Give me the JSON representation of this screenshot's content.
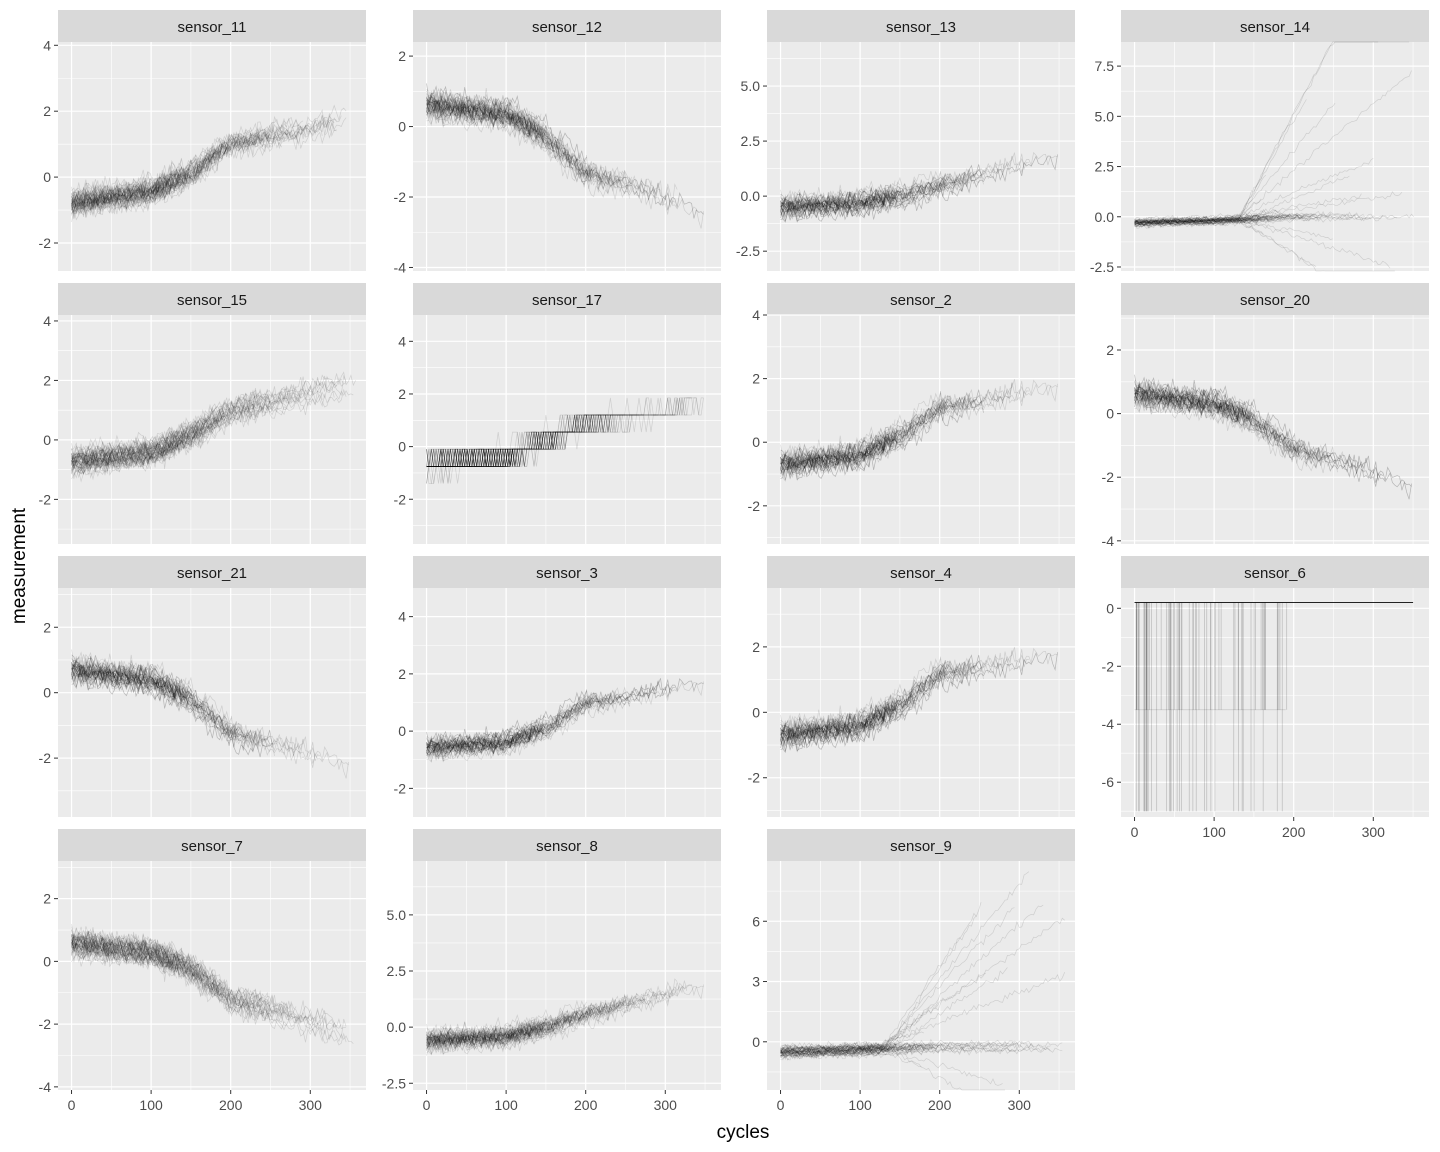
{
  "chart_data": {
    "type": "line",
    "chart_kind": "faceted multi-series line plot (many overlapping translucent traces per panel)",
    "xlabel": "cycles",
    "ylabel": "measurement",
    "grid": true,
    "legend": "none",
    "colors": {
      "panel_background": "#ebebeb",
      "strip_background": "#d9d9d9",
      "grid": "#ffffff",
      "trace": "#000000",
      "tick_label": "#4d4d4d"
    },
    "xlim": [
      -17,
      370
    ],
    "x_ticks": [
      0,
      100,
      200,
      300
    ],
    "panels": [
      {
        "name": "sensor_11",
        "pattern": "increasing",
        "ylim": [
          -2.85,
          4.1
        ],
        "y_ticks": [
          -2,
          0,
          2,
          4
        ],
        "y_tick_labels": [
          "-2",
          "0",
          "2",
          "4"
        ],
        "trend": {
          "x": [
            0,
            100,
            150,
            200,
            250,
            300,
            360
          ],
          "y": [
            -0.8,
            -0.45,
            0.1,
            1.0,
            1.2,
            1.5,
            1.8
          ]
        },
        "spread": 0.55
      },
      {
        "name": "sensor_12",
        "pattern": "decreasing",
        "ylim": [
          -4.1,
          2.4
        ],
        "y_ticks": [
          -4,
          -2,
          0,
          2
        ],
        "y_tick_labels": [
          "-4",
          "-2",
          "0",
          "2"
        ],
        "trend": {
          "x": [
            0,
            100,
            150,
            200,
            250,
            300,
            360
          ],
          "y": [
            0.6,
            0.35,
            -0.3,
            -1.3,
            -1.6,
            -2.0,
            -2.5
          ]
        },
        "spread": 0.55
      },
      {
        "name": "sensor_13",
        "pattern": "increasing",
        "ylim": [
          -3.4,
          7.0
        ],
        "y_ticks": [
          -2.5,
          0,
          2.5,
          5
        ],
        "y_tick_labels": [
          "-2.5",
          "0.0",
          "2.5",
          "5.0"
        ],
        "trend": {
          "x": [
            0,
            100,
            150,
            200,
            250,
            300,
            360
          ],
          "y": [
            -0.5,
            -0.3,
            0.0,
            0.5,
            1.0,
            1.5,
            2.0
          ]
        },
        "spread": 0.7
      },
      {
        "name": "sensor_14",
        "pattern": "flat with divergent traces",
        "ylim": [
          -2.7,
          8.7
        ],
        "y_ticks": [
          -2.5,
          0,
          2.5,
          5,
          7.5
        ],
        "y_tick_labels": [
          "-2.5",
          "0.0",
          "2.5",
          "5.0",
          "7.5"
        ],
        "trend": {
          "x": [
            0,
            100,
            150,
            200,
            250,
            300,
            360
          ],
          "y": [
            -0.3,
            -0.2,
            -0.1,
            0.0,
            0.0,
            0.0,
            0.0
          ]
        },
        "spread": 0.25
      },
      {
        "name": "sensor_15",
        "pattern": "increasing",
        "ylim": [
          -3.5,
          4.2
        ],
        "y_ticks": [
          -2,
          0,
          2,
          4
        ],
        "y_tick_labels": [
          "-2",
          "0",
          "2",
          "4"
        ],
        "trend": {
          "x": [
            0,
            100,
            150,
            200,
            250,
            300,
            360
          ],
          "y": [
            -0.7,
            -0.4,
            0.2,
            1.0,
            1.3,
            1.6,
            1.9
          ]
        },
        "spread": 0.55
      },
      {
        "name": "sensor_17",
        "pattern": "increasing (discrete levels)",
        "ylim": [
          -3.7,
          5.0
        ],
        "y_ticks": [
          -2,
          0,
          2,
          4
        ],
        "y_tick_labels": [
          "-2",
          "0",
          "2",
          "4"
        ],
        "trend": {
          "x": [
            0,
            100,
            150,
            200,
            250,
            300,
            360
          ],
          "y": [
            -0.6,
            -0.3,
            0.3,
            1.0,
            1.2,
            1.5,
            1.8
          ]
        },
        "spread": 0.6
      },
      {
        "name": "sensor_2",
        "pattern": "increasing",
        "ylim": [
          -3.2,
          4.0
        ],
        "y_ticks": [
          -2,
          0,
          2,
          4
        ],
        "y_tick_labels": [
          "-2",
          "0",
          "2",
          "4"
        ],
        "trend": {
          "x": [
            0,
            100,
            150,
            200,
            250,
            300,
            360
          ],
          "y": [
            -0.7,
            -0.4,
            0.2,
            1.1,
            1.3,
            1.6,
            1.9
          ]
        },
        "spread": 0.55
      },
      {
        "name": "sensor_20",
        "pattern": "decreasing",
        "ylim": [
          -4.1,
          3.1
        ],
        "y_ticks": [
          -4,
          -2,
          0,
          2
        ],
        "y_tick_labels": [
          "-4",
          "-2",
          "0",
          "2"
        ],
        "trend": {
          "x": [
            0,
            100,
            150,
            200,
            250,
            300,
            360
          ],
          "y": [
            0.6,
            0.3,
            -0.2,
            -1.1,
            -1.4,
            -1.8,
            -2.3
          ]
        },
        "spread": 0.55
      },
      {
        "name": "sensor_21",
        "pattern": "decreasing",
        "ylim": [
          -3.8,
          3.2
        ],
        "y_ticks": [
          -2,
          0,
          2
        ],
        "y_tick_labels": [
          "-2",
          "0",
          "2"
        ],
        "trend": {
          "x": [
            0,
            100,
            150,
            200,
            250,
            300,
            360
          ],
          "y": [
            0.7,
            0.4,
            -0.2,
            -1.2,
            -1.5,
            -1.8,
            -2.2
          ]
        },
        "spread": 0.55
      },
      {
        "name": "sensor_3",
        "pattern": "increasing",
        "ylim": [
          -3.0,
          5.0
        ],
        "y_ticks": [
          -2,
          0,
          2,
          4
        ],
        "y_tick_labels": [
          "-2",
          "0",
          "2",
          "4"
        ],
        "trend": {
          "x": [
            0,
            100,
            150,
            200,
            250,
            300,
            360
          ],
          "y": [
            -0.6,
            -0.4,
            0.1,
            1.0,
            1.2,
            1.5,
            1.8
          ]
        },
        "spread": 0.5
      },
      {
        "name": "sensor_4",
        "pattern": "increasing",
        "ylim": [
          -3.2,
          3.8
        ],
        "y_ticks": [
          -2,
          0,
          2
        ],
        "y_tick_labels": [
          "-2",
          "0",
          "2"
        ],
        "trend": {
          "x": [
            0,
            100,
            150,
            200,
            250,
            300,
            360
          ],
          "y": [
            -0.7,
            -0.4,
            0.2,
            1.2,
            1.4,
            1.6,
            1.9
          ]
        },
        "spread": 0.55
      },
      {
        "name": "sensor_6",
        "pattern": "constant with dropouts",
        "ylim": [
          -7.2,
          0.7
        ],
        "y_ticks": [
          -6,
          -4,
          -2,
          0
        ],
        "y_tick_labels": [
          "-6",
          "-4",
          "-2",
          "0"
        ],
        "trend": {
          "x": [
            0,
            350
          ],
          "y": [
            0.2,
            0.2
          ]
        },
        "spread": 0.0
      },
      {
        "name": "sensor_7",
        "pattern": "decreasing",
        "ylim": [
          -4.1,
          3.2
        ],
        "y_ticks": [
          -4,
          -2,
          0,
          2
        ],
        "y_tick_labels": [
          "-4",
          "-2",
          "0",
          "2"
        ],
        "trend": {
          "x": [
            0,
            100,
            150,
            200,
            250,
            300,
            360
          ],
          "y": [
            0.6,
            0.3,
            -0.2,
            -1.2,
            -1.5,
            -1.9,
            -2.3
          ]
        },
        "spread": 0.55
      },
      {
        "name": "sensor_8",
        "pattern": "increasing",
        "ylim": [
          -2.8,
          7.4
        ],
        "y_ticks": [
          -2.5,
          0,
          2.5,
          5
        ],
        "y_tick_labels": [
          "-2.5",
          "0.0",
          "2.5",
          "5.0"
        ],
        "trend": {
          "x": [
            0,
            100,
            150,
            200,
            250,
            300,
            360
          ],
          "y": [
            -0.6,
            -0.4,
            0.0,
            0.6,
            1.0,
            1.5,
            2.0
          ]
        },
        "spread": 0.65
      },
      {
        "name": "sensor_9",
        "pattern": "flat with divergent traces",
        "ylim": [
          -2.4,
          9.0
        ],
        "y_ticks": [
          0,
          3,
          6
        ],
        "y_tick_labels": [
          "0",
          "3",
          "6"
        ],
        "trend": {
          "x": [
            0,
            100,
            150,
            200,
            250,
            300,
            360
          ],
          "y": [
            -0.5,
            -0.4,
            -0.3,
            -0.2,
            -0.2,
            -0.2,
            -0.2
          ]
        },
        "spread": 0.35
      }
    ]
  }
}
